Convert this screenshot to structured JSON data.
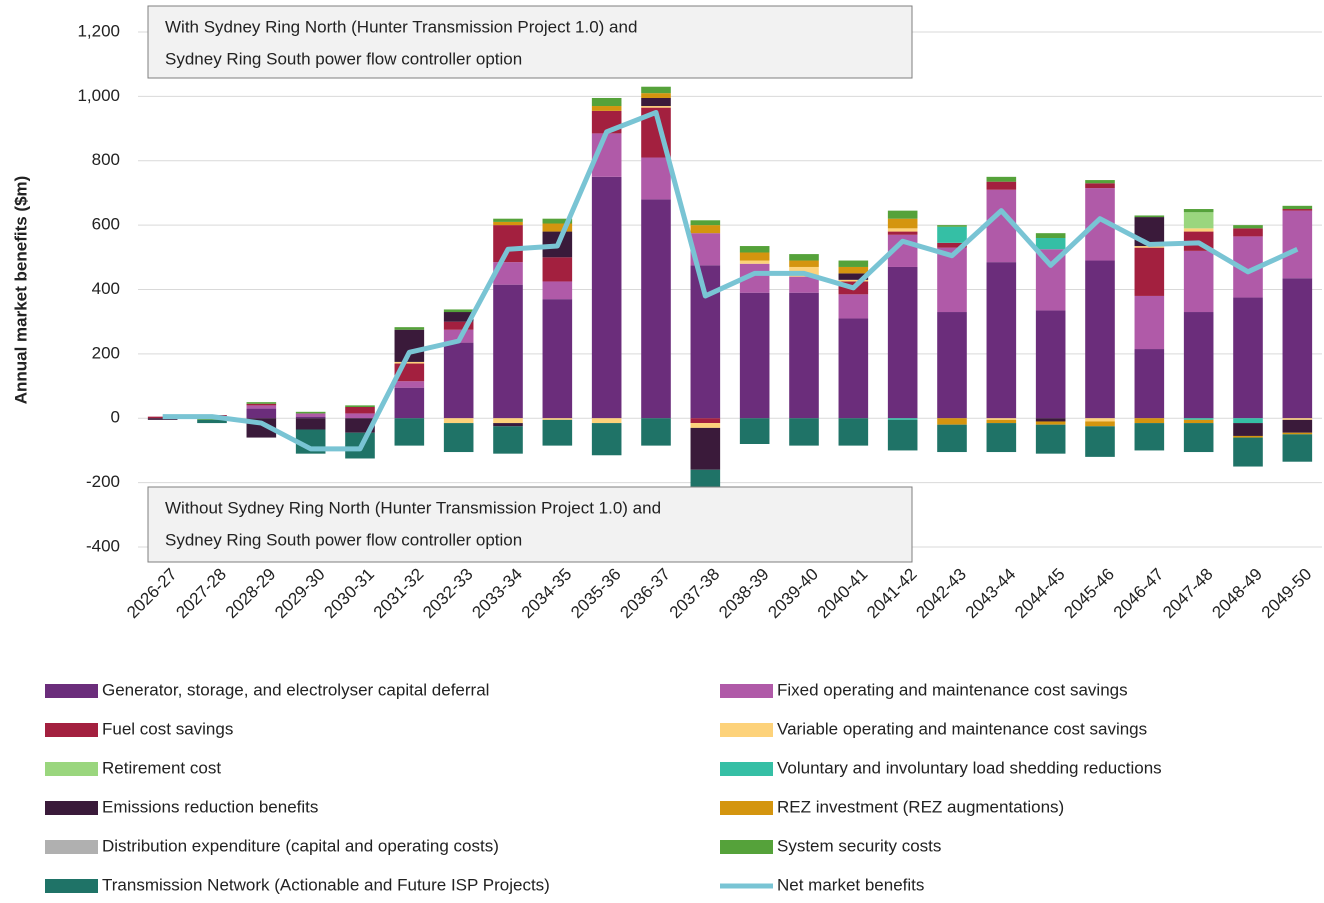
{
  "chart_data": {
    "type": "stacked_bar_line",
    "y_label": "Annual market benefits ($m)",
    "annotations": [
      [
        "With Sydney Ring North (Hunter Transmission Project 1.0) and",
        "Sydney Ring South power flow controller option"
      ],
      [
        "Without Sydney Ring North (Hunter Transmission Project 1.0) and",
        "Sydney Ring South power flow controller option"
      ]
    ],
    "categories": [
      "2026-27",
      "2027-28",
      "2028-29",
      "2029-30",
      "2030-31",
      "2031-32",
      "2032-33",
      "2033-34",
      "2034-35",
      "2035-36",
      "2036-37",
      "2037-38",
      "2038-39",
      "2039-40",
      "2040-41",
      "2041-42",
      "2042-43",
      "2043-44",
      "2044-45",
      "2045-46",
      "2046-47",
      "2047-48",
      "2048-49",
      "2049-50"
    ],
    "ylim": [
      -400,
      1200
    ],
    "yticks": [
      -400,
      -200,
      0,
      200,
      400,
      600,
      800,
      {
        "value": 1000,
        "label": "1,000"
      },
      {
        "value": 1200,
        "label": "1,200"
      }
    ],
    "grid": true,
    "series": [
      {
        "name": "Generator, storage, and electrolyser capital deferral",
        "color": "#6b2d7b",
        "kind": "bar",
        "values": [
          0,
          0,
          30,
          5,
          0,
          95,
          235,
          415,
          370,
          750,
          680,
          475,
          390,
          390,
          310,
          470,
          330,
          485,
          335,
          490,
          215,
          330,
          375,
          435
        ]
      },
      {
        "name": "Fixed operating and maintenance cost savings",
        "color": "#b05aa8",
        "kind": "bar",
        "values": [
          0,
          0,
          10,
          10,
          15,
          20,
          40,
          70,
          55,
          135,
          130,
          100,
          90,
          50,
          75,
          100,
          200,
          225,
          190,
          225,
          165,
          190,
          190,
          210
        ]
      },
      {
        "name": "Fuel cost savings",
        "color": "#a3203f",
        "kind": "bar",
        "values": [
          5,
          10,
          5,
          0,
          20,
          55,
          25,
          115,
          75,
          70,
          155,
          -15,
          0,
          0,
          40,
          10,
          15,
          25,
          0,
          15,
          150,
          60,
          25,
          5
        ]
      },
      {
        "name": "Variable operating and maintenance cost savings",
        "color": "#fdd27a",
        "kind": "bar",
        "values": [
          0,
          0,
          0,
          0,
          0,
          5,
          -15,
          -15,
          -5,
          -15,
          5,
          -15,
          10,
          30,
          5,
          10,
          0,
          -5,
          0,
          -10,
          5,
          10,
          0,
          -5
        ]
      },
      {
        "name": "Retirement cost",
        "color": "#9ad67e",
        "kind": "bar",
        "values": [
          0,
          0,
          0,
          0,
          0,
          0,
          0,
          0,
          0,
          0,
          0,
          0,
          0,
          0,
          0,
          0,
          0,
          0,
          0,
          0,
          0,
          50,
          0,
          0
        ]
      },
      {
        "name": "Voluntary and involuntary load shedding reductions",
        "color": "#35bfa5",
        "kind": "bar",
        "values": [
          0,
          0,
          0,
          0,
          0,
          0,
          0,
          0,
          0,
          0,
          0,
          0,
          0,
          0,
          0,
          -5,
          50,
          0,
          35,
          0,
          0,
          -5,
          -15,
          0
        ]
      },
      {
        "name": "Emissions reduction benefits",
        "color": "#3a1a3a",
        "kind": "bar",
        "values": [
          -5,
          0,
          -60,
          -35,
          -45,
          100,
          30,
          -10,
          80,
          0,
          25,
          -130,
          0,
          0,
          20,
          0,
          0,
          0,
          -10,
          0,
          90,
          0,
          -40,
          -40
        ]
      },
      {
        "name": "REZ investment (REZ augmentations)",
        "color": "#d4950f",
        "kind": "bar",
        "values": [
          0,
          0,
          0,
          0,
          0,
          0,
          0,
          10,
          25,
          15,
          15,
          25,
          25,
          20,
          20,
          30,
          -20,
          -10,
          -10,
          -15,
          -15,
          -10,
          -5,
          -5
        ]
      },
      {
        "name": "Distribution expenditure (capital and operating costs)",
        "color": "#b0b0b0",
        "kind": "bar",
        "values": [
          0,
          0,
          0,
          0,
          0,
          0,
          0,
          0,
          0,
          0,
          0,
          0,
          0,
          0,
          0,
          0,
          0,
          0,
          0,
          0,
          0,
          0,
          0,
          0
        ]
      },
      {
        "name": "System security costs",
        "color": "#55a23a",
        "kind": "bar",
        "values": [
          0,
          -5,
          5,
          5,
          5,
          8,
          8,
          10,
          15,
          25,
          20,
          15,
          20,
          20,
          20,
          25,
          5,
          15,
          15,
          10,
          5,
          10,
          10,
          10
        ]
      },
      {
        "name": "Transmission Network (Actionable and Future ISP Projects)",
        "color": "#1f7367",
        "kind": "bar",
        "values": [
          0,
          -10,
          0,
          -75,
          -80,
          -85,
          -90,
          -85,
          -80,
          -100,
          -85,
          -65,
          -80,
          -85,
          -85,
          -95,
          -85,
          -90,
          -90,
          -95,
          -85,
          -90,
          -90,
          -85
        ]
      },
      {
        "name": "Net market benefits",
        "color": "#79c4d4",
        "kind": "line",
        "values": [
          5,
          5,
          -15,
          -95,
          -95,
          205,
          240,
          525,
          535,
          890,
          950,
          380,
          450,
          450,
          405,
          550,
          505,
          645,
          475,
          620,
          540,
          545,
          455,
          525
        ]
      }
    ]
  }
}
